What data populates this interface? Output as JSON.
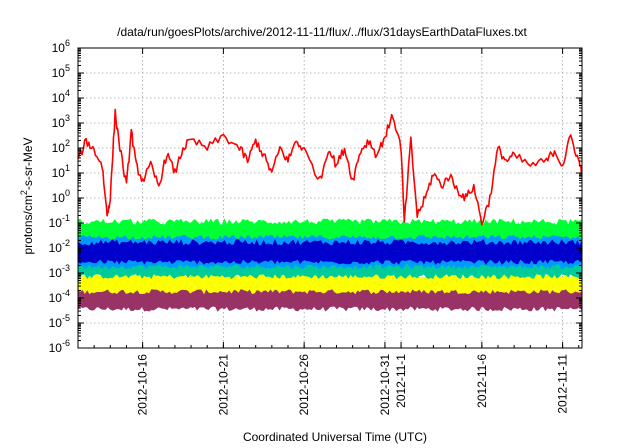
{
  "chart_data": {
    "type": "line",
    "title": "/data/run/goesPlots/archive/2012-11-11/flux/../flux/31daysEarthDataFluxes.txt",
    "xlabel": "Coordinated Universal Time (UTC)",
    "ylabel_parts": {
      "base": "protons/cm",
      "sup": "2",
      "rest": "-s-sr-MeV"
    },
    "yscale": "log",
    "ylim_exp": [
      -6,
      6
    ],
    "y_ticks": [
      {
        "base": "10",
        "exp": "-6",
        "e": -6
      },
      {
        "base": "10",
        "exp": "-5",
        "e": -5
      },
      {
        "base": "10",
        "exp": "-4",
        "e": -4
      },
      {
        "base": "10",
        "exp": "-3",
        "e": -3
      },
      {
        "base": "10",
        "exp": "-2",
        "e": -2
      },
      {
        "base": "10",
        "exp": "-1",
        "e": -1
      },
      {
        "base": "10",
        "exp": "0",
        "e": 0
      },
      {
        "base": "10",
        "exp": "1",
        "e": 1
      },
      {
        "base": "10",
        "exp": "2",
        "e": 2
      },
      {
        "base": "10",
        "exp": "3",
        "e": 3
      },
      {
        "base": "10",
        "exp": "4",
        "e": 4
      },
      {
        "base": "10",
        "exp": "5",
        "e": 5
      },
      {
        "base": "10",
        "exp": "6",
        "e": 6
      }
    ],
    "xlim_days": [
      "2012-10-12",
      "2012-11-12.2"
    ],
    "x_ticks": [
      {
        "label": "2012-10-16",
        "date": "2012-10-16"
      },
      {
        "label": "2012-10-21",
        "date": "2012-10-21"
      },
      {
        "label": "2012-10-26",
        "date": "2012-10-26"
      },
      {
        "label": "2012-10-31",
        "date": "2012-10-31"
      },
      {
        "label": "2012-11-1",
        "date": "2012-11-01"
      },
      {
        "label": "2012-11-6",
        "date": "2012-11-06"
      },
      {
        "label": "2012-11-11",
        "date": "2012-11-11"
      }
    ],
    "grid": true,
    "bands": [
      {
        "color": "#993366",
        "low": 4e-05,
        "high": 0.00025
      },
      {
        "color": "#ffff00",
        "low": 0.0002,
        "high": 0.0008
      },
      {
        "color": "#00cc99",
        "low": 0.0008,
        "high": 0.004
      },
      {
        "color": "#0099ff",
        "low": 0.002,
        "high": 0.04
      },
      {
        "color": "#0000cc",
        "low": 0.003,
        "high": 0.015
      },
      {
        "color": "#00ff33",
        "low": 0.03,
        "high": 0.1
      }
    ],
    "series": [
      {
        "color": "#ff0000",
        "points": [
          [
            "2012-10-12",
            30
          ],
          [
            "2012-10-12.5",
            200
          ],
          [
            "2012-10-13",
            80
          ],
          [
            "2012-10-13.5",
            20
          ],
          [
            "2012-10-13.8",
            0.2
          ],
          [
            "2012-10-14",
            1
          ],
          [
            "2012-10-14.3",
            2500
          ],
          [
            "2012-10-14.6",
            100
          ],
          [
            "2012-10-15",
            3
          ],
          [
            "2012-10-15.3",
            500
          ],
          [
            "2012-10-15.6",
            20
          ],
          [
            "2012-10-16",
            5
          ],
          [
            "2012-10-16.5",
            20
          ],
          [
            "2012-10-17",
            3
          ],
          [
            "2012-10-17.5",
            60
          ],
          [
            "2012-10-18",
            10
          ],
          [
            "2012-10-18.5",
            100
          ],
          [
            "2012-10-19",
            200
          ],
          [
            "2012-10-20",
            100
          ],
          [
            "2012-10-21",
            300
          ],
          [
            "2012-10-22",
            100
          ],
          [
            "2012-10-22.5",
            30
          ],
          [
            "2012-10-23",
            200
          ],
          [
            "2012-10-23.5",
            50
          ],
          [
            "2012-10-24",
            10
          ],
          [
            "2012-10-24.5",
            100
          ],
          [
            "2012-10-25",
            30
          ],
          [
            "2012-10-25.5",
            200
          ],
          [
            "2012-10-26",
            80
          ],
          [
            "2012-10-27",
            5
          ],
          [
            "2012-10-27.5",
            100
          ],
          [
            "2012-10-28",
            20
          ],
          [
            "2012-10-28.5",
            100
          ],
          [
            "2012-10-29",
            5
          ],
          [
            "2012-10-29.5",
            80
          ],
          [
            "2012-10-30",
            200
          ],
          [
            "2012-10-30.5",
            50
          ],
          [
            "2012-10-31",
            300
          ],
          [
            "2012-10-31.5",
            2000
          ],
          [
            "2012-11-01",
            100
          ],
          [
            "2012-11-01.2",
            0.1
          ],
          [
            "2012-11-01.6",
            200
          ],
          [
            "2012-11-02",
            0.2
          ],
          [
            "2012-11-02.5",
            1
          ],
          [
            "2012-11-03",
            10
          ],
          [
            "2012-11-03.5",
            3
          ],
          [
            "2012-11-04",
            8
          ],
          [
            "2012-11-04.5",
            2
          ],
          [
            "2012-11-05",
            1
          ],
          [
            "2012-11-05.5",
            3
          ],
          [
            "2012-11-06",
            0.1
          ],
          [
            "2012-11-06.5",
            1
          ],
          [
            "2012-11-07",
            100
          ],
          [
            "2012-11-07.5",
            30
          ],
          [
            "2012-11-08",
            50
          ],
          [
            "2012-11-09",
            20
          ],
          [
            "2012-11-10",
            30
          ],
          [
            "2012-11-10.5",
            80
          ],
          [
            "2012-11-11",
            20
          ],
          [
            "2012-11-11.5",
            300
          ],
          [
            "2012-11-12",
            30
          ],
          [
            "2012-11-12.2",
            10
          ]
        ]
      }
    ]
  }
}
